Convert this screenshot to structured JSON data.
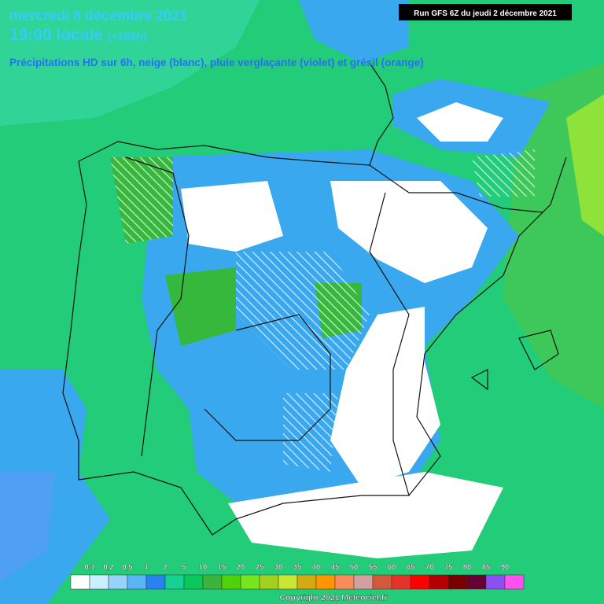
{
  "header": {
    "date": "mercredi 8 décembre 2021",
    "time": "19:00 locale",
    "lead": "(+156h)",
    "run": "Run GFS 6Z du jeudi 2 décembre 2021",
    "subtitle": "Précipitations HD sur 6h, neige (blanc), pluie verglaçante (violet) et grésil (orange)"
  },
  "legend": {
    "labels": [
      "0,1",
      "0,2",
      "0,5",
      "1",
      "2",
      "5",
      "10",
      "15",
      "20",
      "25",
      "30",
      "35",
      "40",
      "45",
      "50",
      "55",
      "60",
      "65",
      "70",
      "75",
      "80",
      "85",
      "90"
    ]
  },
  "footer": {
    "copyright": "Copyright 2021 Meteociel.fr"
  }
}
